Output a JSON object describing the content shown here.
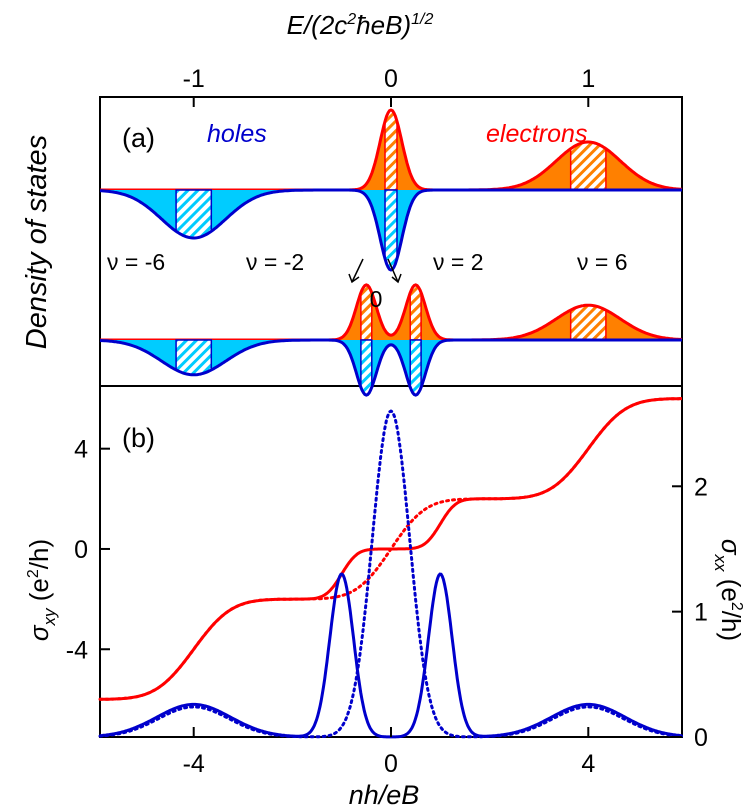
{
  "chart_data": [
    {
      "panel": "a",
      "type": "area",
      "panel_label": "(a)",
      "top_axis": {
        "title_main": "E/(2c",
        "title_sup": "2",
        "title_rest": "ħeB)",
        "title_exp": "1/2",
        "ticks": [
          -1,
          0,
          1
        ],
        "tick_labels": [
          "-1",
          "0",
          "1"
        ]
      },
      "ylabel": "Density of states",
      "legend": {
        "holes": "holes",
        "electrons": "electrons"
      },
      "filling_labels": [
        "ν = -6",
        "ν = -2",
        "ν = 2",
        "ν = 6"
      ],
      "split_label": "0",
      "upper_curve": {
        "description": "unsplit Landau levels",
        "levels": [
          {
            "center_nh_eB": -4,
            "amplitude": -0.6,
            "width": 0.65,
            "type": "holes"
          },
          {
            "center_nh_eB": 0,
            "amplitude": 1.0,
            "width": 0.22,
            "type": "electrons"
          },
          {
            "center_nh_eB": 0,
            "amplitude": -1.0,
            "width": 0.22,
            "type": "holes"
          },
          {
            "center_nh_eB": 4,
            "amplitude": 0.6,
            "width": 0.65,
            "type": "electrons"
          }
        ]
      },
      "lower_curve": {
        "description": "split zero-energy level",
        "levels": [
          {
            "center_nh_eB": -4,
            "amplitude": -0.6,
            "width": 0.65,
            "type": "holes"
          },
          {
            "center_nh_eB": -0.5,
            "amplitude": 0.95,
            "width": 0.2,
            "type": "electrons"
          },
          {
            "center_nh_eB": 0.5,
            "amplitude": 0.95,
            "width": 0.2,
            "type": "electrons"
          },
          {
            "center_nh_eB": -0.5,
            "amplitude": -0.95,
            "width": 0.2,
            "type": "holes"
          },
          {
            "center_nh_eB": 0.5,
            "amplitude": -0.95,
            "width": 0.2,
            "type": "holes"
          },
          {
            "center_nh_eB": 4,
            "amplitude": 0.6,
            "width": 0.65,
            "type": "electrons"
          }
        ]
      },
      "colors": {
        "electrons": "#ff0000",
        "electrons_fill": "#ff8000",
        "holes": "#0000cc",
        "holes_fill": "#00ccff"
      }
    },
    {
      "panel": "b",
      "type": "line",
      "panel_label": "(b)",
      "xlabel": "nh/eB",
      "xlim": [
        -5.9,
        5.9
      ],
      "xticks": [
        -4,
        0,
        4
      ],
      "xtick_labels": [
        "-4",
        "0",
        "4"
      ],
      "left_axis": {
        "label_main": "σ",
        "label_sub": "xy",
        "label_units": " (e",
        "label_units_sup": "2",
        "label_units_end": "/h)",
        "ylim": [
          -7.5,
          6.5
        ],
        "ticks": [
          -4,
          0,
          4
        ],
        "tick_labels": [
          "-4",
          "0",
          "4"
        ]
      },
      "right_axis": {
        "label_main": "σ",
        "label_sub": "xx",
        "label_units": " (e",
        "label_units_sup": "2",
        "label_units_end": "/h)",
        "ylim": [
          0,
          2.8
        ],
        "ticks": [
          0,
          1,
          2
        ],
        "tick_labels": [
          "0",
          "1",
          "2"
        ]
      },
      "series": [
        {
          "name": "sigma_xy_split",
          "axis": "left",
          "style": "solid",
          "color": "#ff0000",
          "steps": [
            {
              "x": -4,
              "w": 0.6
            },
            {
              "x": -4,
              "w": 0.6
            },
            {
              "x": -1,
              "w": 0.25
            },
            {
              "x": 1,
              "w": 0.25
            },
            {
              "x": 4,
              "w": 0.6
            },
            {
              "x": 4,
              "w": 0.6
            }
          ],
          "offset": -6
        },
        {
          "name": "sigma_xy_unsplit",
          "axis": "left",
          "style": "dotted",
          "color": "#ff0000",
          "steps": [
            {
              "x": -4,
              "w": 0.6
            },
            {
              "x": -4,
              "w": 0.6
            },
            {
              "x": 0,
              "w": 0.55
            },
            {
              "x": 0,
              "w": 0.55
            },
            {
              "x": 4,
              "w": 0.6
            },
            {
              "x": 4,
              "w": 0.6
            }
          ],
          "offset": -6
        },
        {
          "name": "sigma_xx_split",
          "axis": "right",
          "style": "solid",
          "color": "#0000cc",
          "peaks": [
            {
              "x": -4,
              "h": 0.26,
              "w": 0.75
            },
            {
              "x": -1,
              "h": 1.3,
              "w": 0.24
            },
            {
              "x": 1,
              "h": 1.3,
              "w": 0.24
            },
            {
              "x": 4,
              "h": 0.26,
              "w": 0.75
            }
          ]
        },
        {
          "name": "sigma_xx_unsplit",
          "axis": "right",
          "style": "dotted",
          "color": "#0000cc",
          "peaks": [
            {
              "x": -4,
              "h": 0.24,
              "w": 0.72
            },
            {
              "x": 0,
              "h": 2.6,
              "w": 0.38
            },
            {
              "x": 4,
              "h": 0.24,
              "w": 0.72
            }
          ]
        }
      ]
    }
  ]
}
